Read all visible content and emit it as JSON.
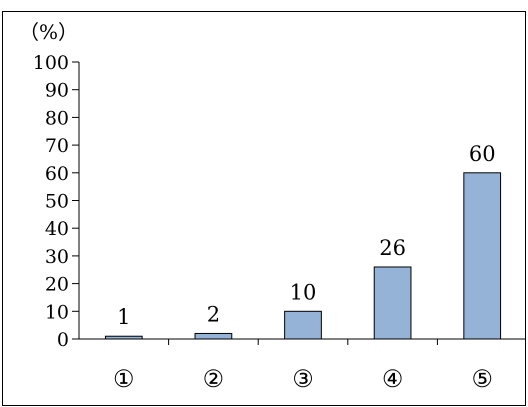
{
  "chart_data": {
    "type": "bar",
    "unit_label": "（%）",
    "categories": [
      "①",
      "②",
      "③",
      "④",
      "⑤"
    ],
    "values": [
      1,
      2,
      10,
      26,
      60
    ],
    "data_labels": [
      "1",
      "2",
      "10",
      "26",
      "60"
    ],
    "y_ticks": [
      "0",
      "10",
      "20",
      "30",
      "40",
      "50",
      "60",
      "70",
      "80",
      "90",
      "100"
    ],
    "ylim": [
      0,
      100
    ],
    "grid": false,
    "legend": "none",
    "bar_color": "#95B3D7",
    "bar_edge_color": "#000000"
  }
}
